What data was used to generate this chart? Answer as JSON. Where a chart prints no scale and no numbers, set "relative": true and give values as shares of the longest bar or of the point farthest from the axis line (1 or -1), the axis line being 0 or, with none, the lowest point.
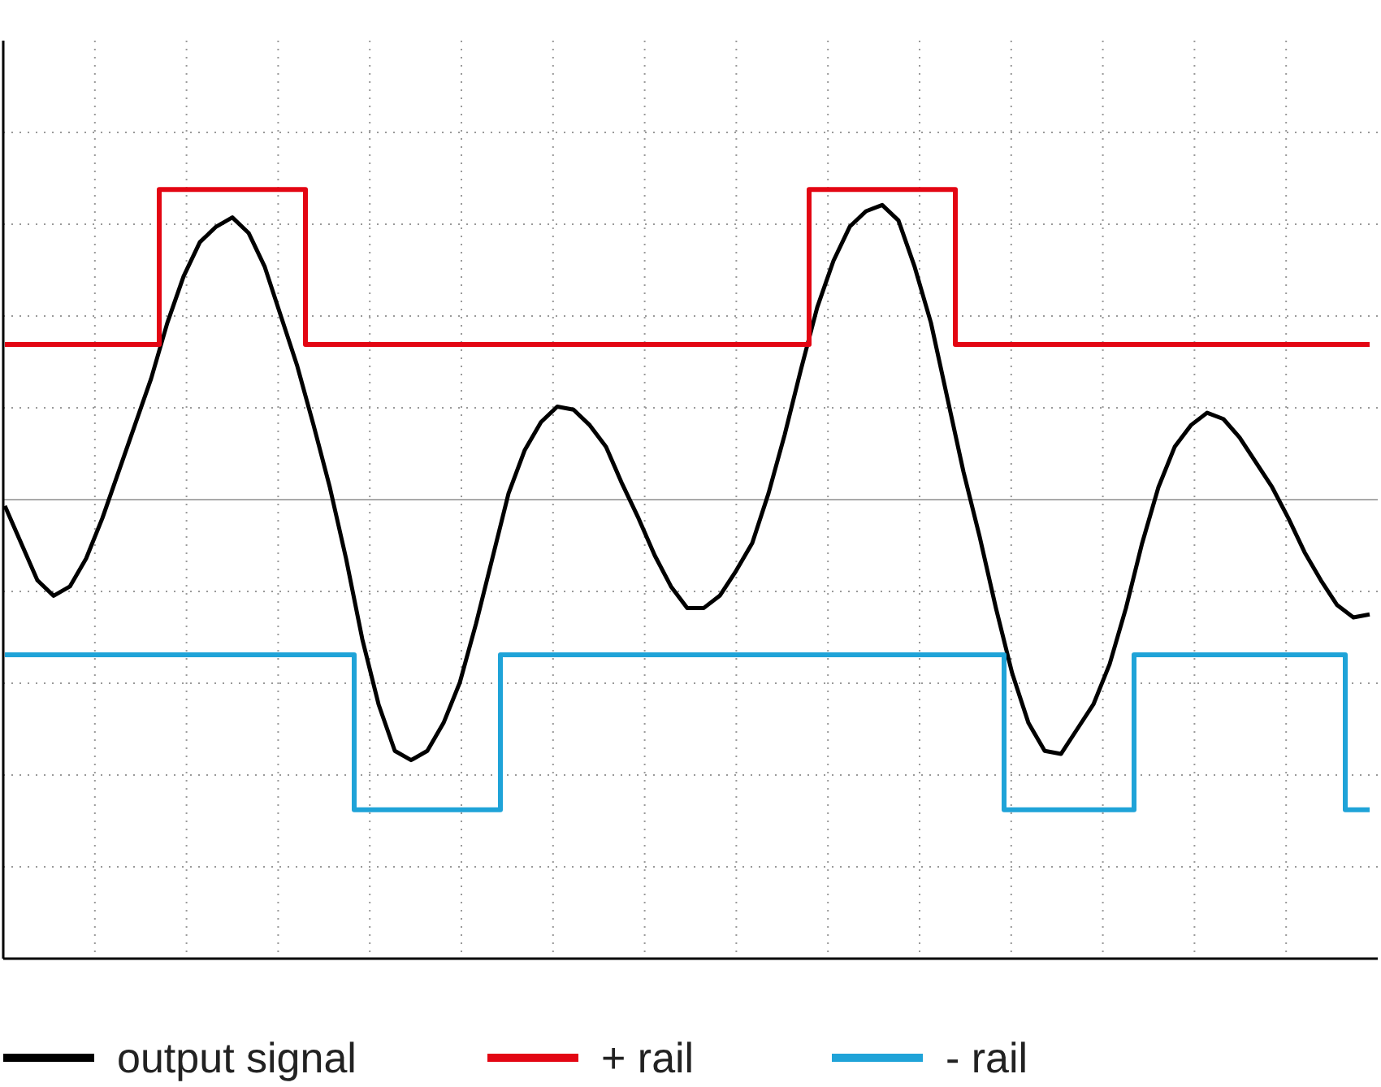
{
  "chart_data": {
    "type": "line",
    "relative": true,
    "grid": true,
    "legend": "bottom",
    "line_style": "solid",
    "marker": "none",
    "categories": [
      null,
      null,
      null,
      null,
      null,
      null,
      null,
      null,
      null,
      null,
      null,
      null,
      null,
      null,
      null,
      null,
      null,
      null,
      null,
      null,
      null,
      null,
      null,
      null,
      null,
      null,
      null,
      null,
      null,
      null,
      null,
      null,
      null,
      null,
      null,
      null,
      null,
      null,
      null,
      null,
      null,
      null,
      null,
      null,
      null,
      null,
      null,
      null,
      null,
      null,
      null,
      null,
      null,
      null,
      null,
      null,
      null,
      null,
      null,
      null,
      null,
      null,
      null,
      null,
      null,
      null,
      null,
      null,
      null,
      null,
      null,
      null,
      null,
      null,
      null,
      null,
      null,
      null,
      null,
      null,
      null,
      null,
      null,
      null,
      null
    ],
    "series": [
      {
        "name": "output signal",
        "color": "#000000",
        "values": [
          -0.02,
          -0.14,
          -0.26,
          -0.31,
          -0.28,
          -0.19,
          -0.06,
          0.09,
          0.24,
          0.39,
          0.57,
          0.72,
          0.83,
          0.88,
          0.91,
          0.86,
          0.75,
          0.59,
          0.43,
          0.24,
          0.04,
          -0.19,
          -0.45,
          -0.66,
          -0.81,
          -0.84,
          -0.81,
          -0.72,
          -0.59,
          -0.4,
          -0.19,
          0.02,
          0.16,
          0.25,
          0.3,
          0.29,
          0.24,
          0.17,
          0.05,
          -0.06,
          -0.18,
          -0.28,
          -0.35,
          -0.35,
          -0.31,
          -0.23,
          -0.14,
          0.02,
          0.21,
          0.42,
          0.62,
          0.77,
          0.88,
          0.93,
          0.95,
          0.9,
          0.75,
          0.57,
          0.33,
          0.09,
          -0.12,
          -0.35,
          -0.56,
          -0.72,
          -0.81,
          -0.82,
          -0.74,
          -0.66,
          -0.53,
          -0.35,
          -0.14,
          0.04,
          0.17,
          0.24,
          0.28,
          0.26,
          0.2,
          0.12,
          0.04,
          -0.06,
          -0.17,
          -0.26,
          -0.34,
          -0.38,
          -0.37
        ]
      },
      {
        "name": "+ rail",
        "type": "step",
        "color": "#e30613",
        "values": [
          0.5,
          0.5,
          0.5,
          0.5,
          0.5,
          0.5,
          0.5,
          0.5,
          0.5,
          0.5,
          1,
          1,
          1,
          1,
          1,
          1,
          1,
          1,
          1,
          0.5,
          0.5,
          0.5,
          0.5,
          0.5,
          0.5,
          0.5,
          0.5,
          0.5,
          0.5,
          0.5,
          0.5,
          0.5,
          0.5,
          0.5,
          0.5,
          0.5,
          0.5,
          0.5,
          0.5,
          0.5,
          0.5,
          0.5,
          0.5,
          0.5,
          0.5,
          0.5,
          0.5,
          0.5,
          0.5,
          0.5,
          1,
          1,
          1,
          1,
          1,
          1,
          1,
          1,
          1,
          0.5,
          0.5,
          0.5,
          0.5,
          0.5,
          0.5,
          0.5,
          0.5,
          0.5,
          0.5,
          0.5,
          0.5,
          0.5,
          0.5,
          0.5,
          0.5,
          0.5,
          0.5,
          0.5,
          0.5,
          0.5,
          0.5,
          0.5,
          0.5,
          0.5,
          0.5
        ]
      },
      {
        "name": "- rail",
        "type": "step",
        "color": "#1fa3d8",
        "values": [
          -0.5,
          -0.5,
          -0.5,
          -0.5,
          -0.5,
          -0.5,
          -0.5,
          -0.5,
          -0.5,
          -0.5,
          -0.5,
          -0.5,
          -0.5,
          -0.5,
          -0.5,
          -0.5,
          -0.5,
          -0.5,
          -0.5,
          -0.5,
          -0.5,
          -0.5,
          -1,
          -1,
          -1,
          -1,
          -1,
          -1,
          -1,
          -1,
          -1,
          -0.5,
          -0.5,
          -0.5,
          -0.5,
          -0.5,
          -0.5,
          -0.5,
          -0.5,
          -0.5,
          -0.5,
          -0.5,
          -0.5,
          -0.5,
          -0.5,
          -0.5,
          -0.5,
          -0.5,
          -0.5,
          -0.5,
          -0.5,
          -0.5,
          -0.5,
          -0.5,
          -0.5,
          -0.5,
          -0.5,
          -0.5,
          -0.5,
          -0.5,
          -0.5,
          -0.5,
          -1,
          -1,
          -1,
          -1,
          -1,
          -1,
          -1,
          -1,
          -0.5,
          -0.5,
          -0.5,
          -0.5,
          -0.5,
          -0.5,
          -0.5,
          -0.5,
          -0.5,
          -0.5,
          -0.5,
          -0.5,
          -0.5,
          -1,
          -1
        ]
      }
    ]
  }
}
